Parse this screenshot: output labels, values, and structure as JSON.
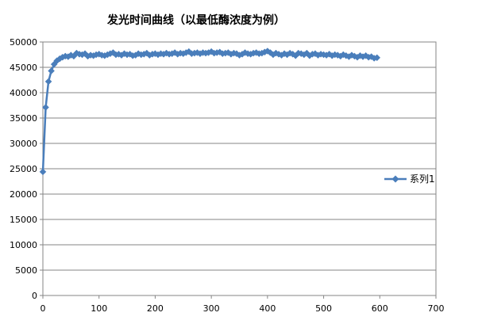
{
  "chart_data": {
    "type": "line",
    "title": "发光时间曲线（以最低酶浓度为例）",
    "xlabel": "",
    "ylabel": "",
    "xlim": [
      0,
      700
    ],
    "ylim": [
      0,
      50000
    ],
    "x_ticks": [
      0,
      100,
      200,
      300,
      400,
      500,
      600,
      700
    ],
    "y_ticks": [
      0,
      5000,
      10000,
      15000,
      20000,
      25000,
      30000,
      35000,
      40000,
      45000,
      50000
    ],
    "grid": "horizontal",
    "legend_position": "right",
    "series": [
      {
        "name": "系列1",
        "color": "#4A7EBB",
        "marker": "diamond",
        "x": [
          0,
          5,
          10,
          15,
          20,
          25,
          30,
          35,
          40,
          45,
          50,
          55,
          60,
          65,
          70,
          75,
          80,
          85,
          90,
          95,
          100,
          105,
          110,
          115,
          120,
          125,
          130,
          135,
          140,
          145,
          150,
          155,
          160,
          165,
          170,
          175,
          180,
          185,
          190,
          195,
          200,
          205,
          210,
          215,
          220,
          225,
          230,
          235,
          240,
          245,
          250,
          255,
          260,
          265,
          270,
          275,
          280,
          285,
          290,
          295,
          300,
          305,
          310,
          315,
          320,
          325,
          330,
          335,
          340,
          345,
          350,
          355,
          360,
          365,
          370,
          375,
          380,
          385,
          390,
          395,
          400,
          405,
          410,
          415,
          420,
          425,
          430,
          435,
          440,
          445,
          450,
          455,
          460,
          465,
          470,
          475,
          480,
          485,
          490,
          495,
          500,
          505,
          510,
          515,
          520,
          525,
          530,
          535,
          540,
          545,
          550,
          555,
          560,
          565,
          570,
          575,
          580,
          585,
          590,
          595
        ],
        "values": [
          24400,
          37100,
          42200,
          44300,
          45600,
          46300,
          46700,
          47000,
          47200,
          47100,
          47400,
          47200,
          47800,
          47600,
          47500,
          47700,
          47200,
          47400,
          47300,
          47500,
          47600,
          47400,
          47300,
          47500,
          47700,
          47900,
          47500,
          47600,
          47400,
          47700,
          47500,
          47600,
          47300,
          47400,
          47700,
          47500,
          47600,
          47800,
          47400,
          47600,
          47700,
          47500,
          47700,
          47600,
          47800,
          47600,
          47700,
          47900,
          47600,
          47800,
          47700,
          47900,
          48100,
          47700,
          47800,
          47900,
          47700,
          47900,
          47800,
          47900,
          48100,
          47800,
          47900,
          48000,
          47700,
          47800,
          47900,
          47600,
          47800,
          47700,
          47400,
          47600,
          47900,
          47700,
          47600,
          47800,
          47900,
          47700,
          47800,
          48000,
          48200,
          47900,
          47500,
          47800,
          47600,
          47400,
          47700,
          47500,
          47800,
          47600,
          47300,
          47800,
          47700,
          47500,
          47800,
          47300,
          47600,
          47700,
          47400,
          47600,
          47500,
          47400,
          47600,
          47300,
          47500,
          47400,
          47200,
          47500,
          47300,
          47100,
          47400,
          47200,
          47000,
          47300,
          47100,
          47300,
          47000,
          47100,
          46800,
          46900
        ]
      }
    ]
  }
}
